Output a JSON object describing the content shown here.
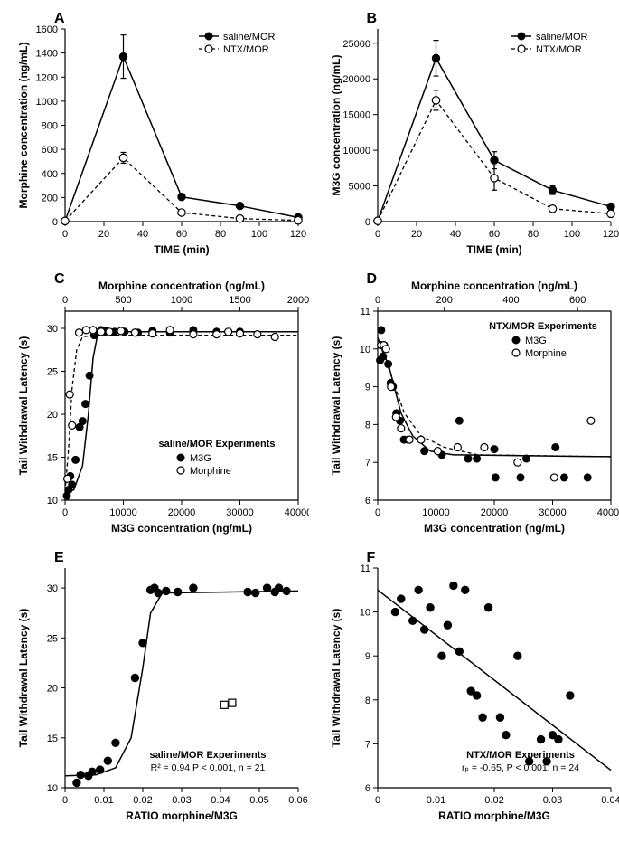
{
  "panelA": {
    "label": "A",
    "type": "line",
    "xlabel": "TIME (min)",
    "ylabel": "Morphine concentration (ng/mL)",
    "xlim": [
      0,
      120
    ],
    "xtick_step": 20,
    "ylim": [
      0,
      1600
    ],
    "ytick_step": 200,
    "legend": {
      "s1": "saline/MOR",
      "s2": "NTX/MOR"
    },
    "series_saline": {
      "x": [
        0,
        30,
        60,
        90,
        120
      ],
      "y": [
        5,
        1370,
        205,
        130,
        35
      ],
      "err": [
        0,
        180,
        25,
        20,
        15
      ],
      "marker": "closed"
    },
    "series_ntx": {
      "x": [
        0,
        30,
        60,
        90,
        120
      ],
      "y": [
        5,
        530,
        75,
        25,
        10
      ],
      "err": [
        0,
        45,
        20,
        10,
        10
      ],
      "marker": "open"
    }
  },
  "panelB": {
    "label": "B",
    "type": "line",
    "xlabel": "TIME (min)",
    "ylabel": "M3G concentration (ng/mL)",
    "xlim": [
      0,
      120
    ],
    "xtick_step": 20,
    "ylim": [
      0,
      27000
    ],
    "yticks": [
      0,
      5000,
      10000,
      15000,
      20000,
      25000
    ],
    "legend": {
      "s1": "saline/MOR",
      "s2": "NTX/MOR"
    },
    "series_saline": {
      "x": [
        0,
        30,
        60,
        90,
        120
      ],
      "y": [
        100,
        22900,
        8600,
        4400,
        2100
      ],
      "err": [
        0,
        2500,
        1200,
        600,
        400
      ],
      "marker": "closed"
    },
    "series_ntx": {
      "x": [
        0,
        30,
        60,
        90,
        120
      ],
      "y": [
        100,
        17000,
        6100,
        1800,
        1100
      ],
      "err": [
        0,
        1400,
        1700,
        400,
        300
      ],
      "marker": "open"
    }
  },
  "panelC": {
    "label": "C",
    "type": "scatter-dual-x",
    "ylabel": "Tail Withdrawal Latency (s)",
    "x_top_label": "Morphine concentration (ng/mL)",
    "x_bot_label": "M3G concentration (ng/mL)",
    "x_top_lim": [
      0,
      2000
    ],
    "x_top_tick_step": 500,
    "x_bot_lim": [
      0,
      40000
    ],
    "x_bot_tick_step": 10000,
    "ylim": [
      10,
      32
    ],
    "ytick_step": 5,
    "yticks": [
      10,
      15,
      20,
      25,
      30
    ],
    "legend_title": "saline/MOR Experiments",
    "legend": {
      "s1": "M3G",
      "s2": "Morphine"
    },
    "m3g_pts": [
      [
        300,
        10.5
      ],
      [
        600,
        11.2
      ],
      [
        900,
        12.8
      ],
      [
        1200,
        11.8
      ],
      [
        1800,
        14.7
      ],
      [
        2500,
        18.5
      ],
      [
        3000,
        19.2
      ],
      [
        3500,
        21.2
      ],
      [
        4200,
        24.5
      ],
      [
        5000,
        29.2
      ],
      [
        5500,
        29.5
      ],
      [
        6200,
        29.8
      ],
      [
        7000,
        29.7
      ],
      [
        8500,
        29.6
      ],
      [
        10200,
        29.6
      ],
      [
        12500,
        29.5
      ],
      [
        15000,
        29.7
      ],
      [
        18000,
        29.5
      ],
      [
        22000,
        29.8
      ],
      [
        26000,
        29.6
      ],
      [
        30000,
        29.6
      ]
    ],
    "mor_pts": [
      [
        20,
        12.5
      ],
      [
        40,
        22.3
      ],
      [
        60,
        18.7
      ],
      [
        120,
        29.5
      ],
      [
        180,
        29.8
      ],
      [
        240,
        29.8
      ],
      [
        310,
        29.6
      ],
      [
        380,
        29.6
      ],
      [
        480,
        29.7
      ],
      [
        600,
        29.5
      ],
      [
        750,
        29.4
      ],
      [
        900,
        29.8
      ],
      [
        1100,
        29.3
      ],
      [
        1300,
        29.3
      ],
      [
        1400,
        29.6
      ],
      [
        1500,
        29.4
      ],
      [
        1650,
        29.3
      ],
      [
        1800,
        29.0
      ]
    ],
    "fit_m3g": {
      "x": [
        0,
        1500,
        3000,
        4000,
        4800,
        5500,
        6500,
        8000,
        40000
      ],
      "y": [
        10.8,
        11.2,
        14.0,
        20.0,
        26.5,
        29.0,
        29.5,
        29.6,
        29.6
      ]
    },
    "fit_mor": {
      "x": [
        0,
        30,
        60,
        100,
        150,
        250,
        2000
      ],
      "y": [
        11.0,
        16.0,
        23.0,
        27.5,
        29.0,
        29.2,
        29.2
      ]
    }
  },
  "panelD": {
    "label": "D",
    "type": "scatter-dual-x",
    "ylabel": "Tail Withdrawal Latency (s)",
    "x_top_label": "Morphine concentration (ng/mL)",
    "x_bot_label": "M3G concentration (ng/mL)",
    "x_top_lim": [
      0,
      700
    ],
    "x_top_ticks": [
      0,
      200,
      400,
      600
    ],
    "x_bot_lim": [
      0,
      40000
    ],
    "x_bot_tick_step": 10000,
    "ylim": [
      6,
      11
    ],
    "ytick_step": 1,
    "legend_title": "NTX/MOR Experiments",
    "legend": {
      "s1": "M3G",
      "s2": "Morphine"
    },
    "m3g_pts": [
      [
        400,
        9.7
      ],
      [
        600,
        10.5
      ],
      [
        900,
        9.8
      ],
      [
        1100,
        10.1
      ],
      [
        1400,
        10.0
      ],
      [
        1800,
        9.6
      ],
      [
        2200,
        9.1
      ],
      [
        2600,
        9.0
      ],
      [
        3200,
        8.3
      ],
      [
        3800,
        8.1
      ],
      [
        4500,
        7.6
      ],
      [
        5200,
        7.6
      ],
      [
        8000,
        7.3
      ],
      [
        11000,
        7.2
      ],
      [
        14000,
        8.1
      ],
      [
        15500,
        7.1
      ],
      [
        17000,
        7.1
      ],
      [
        20000,
        7.35
      ],
      [
        20200,
        6.6
      ],
      [
        24500,
        6.6
      ],
      [
        25500,
        7.1
      ],
      [
        30500,
        7.4
      ],
      [
        32000,
        6.6
      ],
      [
        36000,
        6.6
      ]
    ],
    "mor_pts": [
      [
        10,
        10.1
      ],
      [
        18,
        10.1
      ],
      [
        25,
        10.0
      ],
      [
        40,
        9.0
      ],
      [
        55,
        8.2
      ],
      [
        70,
        7.9
      ],
      [
        95,
        7.6
      ],
      [
        130,
        7.6
      ],
      [
        180,
        7.3
      ],
      [
        240,
        7.4
      ],
      [
        320,
        7.4
      ],
      [
        420,
        7.0
      ],
      [
        530,
        6.6
      ],
      [
        640,
        8.1
      ]
    ],
    "fit_m3g": {
      "x": [
        0,
        2000,
        4000,
        6000,
        9000,
        13000,
        40000
      ],
      "y": [
        10.3,
        9.5,
        8.3,
        7.7,
        7.3,
        7.2,
        7.15
      ]
    },
    "fit_mor": {
      "x": [
        0,
        40,
        80,
        130,
        200,
        300,
        700
      ],
      "y": [
        10.3,
        9.3,
        8.3,
        7.7,
        7.4,
        7.2,
        7.15
      ]
    }
  },
  "panelE": {
    "label": "E",
    "type": "scatter",
    "ylabel": "Tail Withdrawal Latency (s)",
    "xlabel": "RATIO morphine/M3G",
    "xlim": [
      0,
      0.06
    ],
    "xtick_step": 0.01,
    "ylim": [
      10,
      32
    ],
    "yticks": [
      10,
      15,
      20,
      25,
      30
    ],
    "legend_title": "saline/MOR Experiments",
    "stats": "R² = 0.94 P < 0.001, n  = 21",
    "pts": [
      [
        0.003,
        10.5
      ],
      [
        0.004,
        11.3
      ],
      [
        0.006,
        11.2
      ],
      [
        0.007,
        11.6
      ],
      [
        0.009,
        11.8
      ],
      [
        0.011,
        12.7
      ],
      [
        0.013,
        14.5
      ],
      [
        0.018,
        21.0
      ],
      [
        0.02,
        24.5
      ],
      [
        0.022,
        29.8
      ],
      [
        0.023,
        30.0
      ],
      [
        0.024,
        29.5
      ],
      [
        0.026,
        29.7
      ],
      [
        0.029,
        29.6
      ],
      [
        0.033,
        30.0
      ],
      [
        0.047,
        29.6
      ],
      [
        0.049,
        29.5
      ],
      [
        0.052,
        30.0
      ],
      [
        0.054,
        29.6
      ],
      [
        0.055,
        30.0
      ],
      [
        0.057,
        29.7
      ]
    ],
    "outliers": [
      [
        0.041,
        18.3
      ],
      [
        0.043,
        18.5
      ]
    ],
    "fit": {
      "x": [
        0,
        0.008,
        0.013,
        0.017,
        0.02,
        0.022,
        0.025,
        0.06
      ],
      "y": [
        11.2,
        11.3,
        12.0,
        15.0,
        22.0,
        27.5,
        29.5,
        29.7
      ]
    }
  },
  "panelF": {
    "label": "F",
    "type": "scatter",
    "ylabel": "Tail Withdrawal Latency (s)",
    "xlabel": "RATIO morphine/M3G",
    "xlim": [
      0,
      0.04
    ],
    "xtick_step": 0.01,
    "ylim": [
      6,
      11
    ],
    "ytick_step": 1,
    "legend_title": "NTX/MOR Experiments",
    "stats": "rₚ =  -0.65, P < 0.001, n  = 24",
    "pts": [
      [
        0.003,
        10.0
      ],
      [
        0.004,
        10.3
      ],
      [
        0.006,
        9.8
      ],
      [
        0.007,
        10.5
      ],
      [
        0.008,
        9.6
      ],
      [
        0.009,
        10.1
      ],
      [
        0.011,
        9.0
      ],
      [
        0.012,
        9.7
      ],
      [
        0.013,
        10.6
      ],
      [
        0.014,
        9.1
      ],
      [
        0.015,
        10.5
      ],
      [
        0.016,
        8.2
      ],
      [
        0.017,
        8.1
      ],
      [
        0.018,
        7.6
      ],
      [
        0.019,
        10.1
      ],
      [
        0.021,
        7.6
      ],
      [
        0.022,
        7.2
      ],
      [
        0.024,
        9.0
      ],
      [
        0.026,
        6.6
      ],
      [
        0.028,
        7.1
      ],
      [
        0.029,
        6.6
      ],
      [
        0.03,
        7.2
      ],
      [
        0.031,
        7.1
      ],
      [
        0.033,
        8.1
      ]
    ],
    "fit": {
      "x": [
        0,
        0.04
      ],
      "y": [
        10.5,
        6.4
      ]
    }
  },
  "colors": {
    "bg": "#ffffff",
    "fg": "#000000"
  },
  "marker_radius": 4.2,
  "font_sizes": {
    "axis_label": 12,
    "tick": 11,
    "legend": 11,
    "panel_label": 16
  }
}
